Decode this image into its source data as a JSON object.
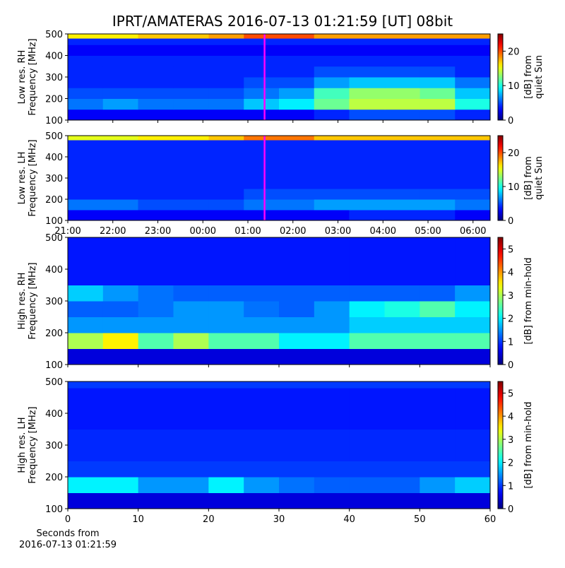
{
  "chart_data": [
    {
      "type": "heatmap",
      "title": "IPRT/AMATERAS 2016-07-13 01:21:59 [UT]   08bit",
      "ylabel": [
        "Low res. RH",
        "Frequency [MHz]"
      ],
      "colorbar_label": [
        "[dB] from",
        "quiet Sun"
      ],
      "colormap": "jet",
      "clim": [
        0,
        25
      ],
      "cticks": [
        0,
        10,
        20
      ],
      "xlim": [
        21,
        30.38
      ],
      "xticks": [
        21,
        22,
        23,
        24,
        25,
        26,
        27,
        28,
        29,
        30
      ],
      "show_xtick_labels": false,
      "ylim": [
        100,
        500
      ],
      "yticks": [
        100,
        200,
        300,
        400,
        500
      ],
      "marker_line": {
        "x": 25.37,
        "color": "#ff00ff"
      },
      "x_edges": [
        21,
        21.78,
        22.56,
        23.35,
        24.13,
        24.91,
        25.69,
        26.47,
        27.25,
        28.04,
        28.82,
        29.6,
        30.38
      ],
      "y_edges": [
        100,
        150,
        200,
        250,
        300,
        350,
        400,
        450,
        480,
        500
      ],
      "z": [
        [
          3,
          3,
          3,
          3,
          3,
          3,
          3,
          4,
          5,
          5,
          5,
          4
        ],
        [
          6,
          7,
          6,
          6,
          6,
          8,
          9,
          12,
          14,
          14,
          14,
          10
        ],
        [
          5,
          5,
          5,
          5,
          5,
          6,
          7,
          11,
          13,
          13,
          12,
          8
        ],
        [
          4,
          4,
          4,
          4,
          4,
          5,
          5,
          7,
          8,
          8,
          8,
          6
        ],
        [
          4,
          4,
          4,
          4,
          4,
          4,
          4,
          5,
          5,
          5,
          5,
          4
        ],
        [
          4,
          4,
          4,
          4,
          4,
          4,
          4,
          4,
          4,
          4,
          4,
          4
        ],
        [
          3,
          3,
          3,
          3,
          3,
          3,
          3,
          3,
          3,
          3,
          3,
          3
        ],
        [
          4,
          4,
          4,
          4,
          4,
          4,
          4,
          4,
          4,
          4,
          4,
          4
        ],
        [
          16,
          16,
          17,
          17,
          18,
          20,
          20,
          18,
          18,
          18,
          18,
          18
        ]
      ]
    },
    {
      "type": "heatmap",
      "ylabel": [
        "Low res. LH",
        "Frequency [MHz]"
      ],
      "colorbar_label": [
        "[dB] from",
        "quiet Sun"
      ],
      "colormap": "jet",
      "clim": [
        0,
        25
      ],
      "cticks": [
        0,
        10,
        20
      ],
      "xlim": [
        21,
        30.38
      ],
      "xticks": [
        {
          "value": 21,
          "label": "21:00"
        },
        {
          "value": 22,
          "label": "22:00"
        },
        {
          "value": 23,
          "label": "23:00"
        },
        {
          "value": 24,
          "label": "00:00"
        },
        {
          "value": 25,
          "label": "01:00"
        },
        {
          "value": 26,
          "label": "02:00"
        },
        {
          "value": 27,
          "label": "03:00"
        },
        {
          "value": 28,
          "label": "04:00"
        },
        {
          "value": 29,
          "label": "05:00"
        },
        {
          "value": 30,
          "label": "06:00"
        }
      ],
      "ylim": [
        100,
        500
      ],
      "yticks": [
        100,
        200,
        300,
        400,
        500
      ],
      "marker_line": {
        "x": 25.37,
        "color": "#ff00ff"
      },
      "x_edges": [
        21,
        21.78,
        22.56,
        23.35,
        24.13,
        24.91,
        25.69,
        26.47,
        27.25,
        28.04,
        28.82,
        29.6,
        30.38
      ],
      "y_edges": [
        100,
        150,
        200,
        250,
        300,
        350,
        400,
        450,
        480,
        500
      ],
      "z": [
        [
          3,
          3,
          3,
          3,
          3,
          3,
          3,
          3,
          4,
          4,
          4,
          3
        ],
        [
          6,
          6,
          5,
          5,
          5,
          6,
          6,
          7,
          7,
          7,
          7,
          6
        ],
        [
          4,
          4,
          4,
          4,
          4,
          5,
          5,
          5,
          5,
          5,
          5,
          5
        ],
        [
          4,
          4,
          4,
          4,
          4,
          4,
          4,
          4,
          4,
          4,
          4,
          4
        ],
        [
          4,
          4,
          4,
          4,
          4,
          4,
          4,
          4,
          4,
          4,
          4,
          4
        ],
        [
          4,
          4,
          4,
          4,
          4,
          4,
          4,
          4,
          4,
          4,
          4,
          4
        ],
        [
          4,
          4,
          4,
          4,
          4,
          4,
          4,
          4,
          4,
          4,
          4,
          4
        ],
        [
          4,
          4,
          4,
          4,
          4,
          4,
          4,
          4,
          4,
          4,
          4,
          4
        ],
        [
          15,
          15,
          16,
          16,
          17,
          19,
          19,
          17,
          17,
          17,
          17,
          17
        ]
      ]
    },
    {
      "type": "heatmap",
      "ylabel": [
        "High res. RH",
        "Frequency [MHz]"
      ],
      "colorbar_label": [
        "[dB] from min-hold"
      ],
      "colormap": "jet",
      "clim": [
        0,
        5.5
      ],
      "cticks": [
        0,
        1,
        2,
        3,
        4,
        5
      ],
      "xlim": [
        0,
        60
      ],
      "xticks": [
        0,
        10,
        20,
        30,
        40,
        50,
        60
      ],
      "show_xtick_labels": false,
      "ylim": [
        100,
        500
      ],
      "yticks": [
        100,
        200,
        300,
        400,
        500
      ],
      "x_edges": [
        0,
        5,
        10,
        15,
        20,
        25,
        30,
        35,
        40,
        45,
        50,
        55,
        60
      ],
      "y_edges": [
        100,
        150,
        200,
        250,
        300,
        350,
        400,
        450,
        480,
        500
      ],
      "z": [
        [
          0.5,
          0.5,
          0.5,
          0.5,
          0.5,
          0.5,
          0.5,
          0.5,
          0.5,
          0.5,
          0.5,
          0.5
        ],
        [
          3,
          3.5,
          2.5,
          3,
          2.5,
          2.5,
          2,
          2,
          2.5,
          2.5,
          2.5,
          2.5
        ],
        [
          1.5,
          1.5,
          1.5,
          1.5,
          1.5,
          1.5,
          1.5,
          1.5,
          1.8,
          1.8,
          1.8,
          1.8
        ],
        [
          1.2,
          1.2,
          1.3,
          1.5,
          1.5,
          1.3,
          1.2,
          1.5,
          2,
          2.2,
          2.5,
          2
        ],
        [
          1.8,
          1.5,
          1.3,
          1.2,
          1.2,
          1.2,
          1.2,
          1.2,
          1.2,
          1.2,
          1.2,
          1.5
        ],
        [
          0.8,
          0.8,
          0.8,
          0.8,
          0.8,
          0.8,
          0.8,
          0.8,
          0.8,
          0.8,
          0.8,
          0.8
        ],
        [
          0.8,
          0.8,
          0.8,
          0.8,
          0.8,
          0.8,
          0.8,
          0.8,
          0.8,
          0.8,
          0.8,
          0.8
        ],
        [
          0.8,
          0.8,
          0.8,
          0.8,
          0.8,
          0.8,
          0.8,
          0.8,
          0.8,
          0.8,
          0.8,
          0.8
        ],
        [
          0.8,
          0.8,
          0.8,
          0.8,
          0.8,
          0.8,
          0.8,
          0.8,
          0.8,
          0.8,
          0.8,
          0.8
        ]
      ]
    },
    {
      "type": "heatmap",
      "ylabel": [
        "High res. LH",
        "Frequency [MHz]"
      ],
      "colorbar_label": [
        "[dB] from min-hold"
      ],
      "colormap": "jet",
      "clim": [
        0,
        5.5
      ],
      "cticks": [
        0,
        1,
        2,
        3,
        4,
        5
      ],
      "xlim": [
        0,
        60
      ],
      "xticks": [
        0,
        10,
        20,
        30,
        40,
        50,
        60
      ],
      "xlabel": [
        "Seconds from",
        "2016-07-13 01:21:59"
      ],
      "ylim": [
        100,
        500
      ],
      "yticks": [
        100,
        200,
        300,
        400,
        500
      ],
      "x_edges": [
        0,
        5,
        10,
        15,
        20,
        25,
        30,
        35,
        40,
        45,
        50,
        55,
        60
      ],
      "y_edges": [
        100,
        150,
        200,
        250,
        300,
        350,
        400,
        450,
        480,
        500
      ],
      "z": [
        [
          0.5,
          0.5,
          0.5,
          0.5,
          0.5,
          0.5,
          0.5,
          0.5,
          0.5,
          0.5,
          0.5,
          0.5
        ],
        [
          2,
          2,
          1.5,
          1.5,
          2,
          1.5,
          1.3,
          1.2,
          1.2,
          1.2,
          1.5,
          1.8
        ],
        [
          1,
          1,
          1,
          1,
          1,
          1,
          1,
          1,
          1,
          1,
          1,
          1
        ],
        [
          0.9,
          0.9,
          0.9,
          0.9,
          0.9,
          0.9,
          0.9,
          0.9,
          0.9,
          0.9,
          0.9,
          0.9
        ],
        [
          0.9,
          0.9,
          0.9,
          0.9,
          0.9,
          0.9,
          0.9,
          0.9,
          0.9,
          0.9,
          0.9,
          0.9
        ],
        [
          0.8,
          0.8,
          0.8,
          0.8,
          0.8,
          0.8,
          0.8,
          0.8,
          0.8,
          0.8,
          0.8,
          0.8
        ],
        [
          0.8,
          0.8,
          0.8,
          0.8,
          0.8,
          0.8,
          0.8,
          0.8,
          0.8,
          0.8,
          0.8,
          0.8
        ],
        [
          0.8,
          0.8,
          0.8,
          0.8,
          0.8,
          0.8,
          0.8,
          0.8,
          0.8,
          0.8,
          0.8,
          0.8
        ],
        [
          1,
          1,
          1,
          1,
          1,
          1,
          1,
          1,
          1,
          1,
          1,
          1
        ]
      ]
    }
  ]
}
